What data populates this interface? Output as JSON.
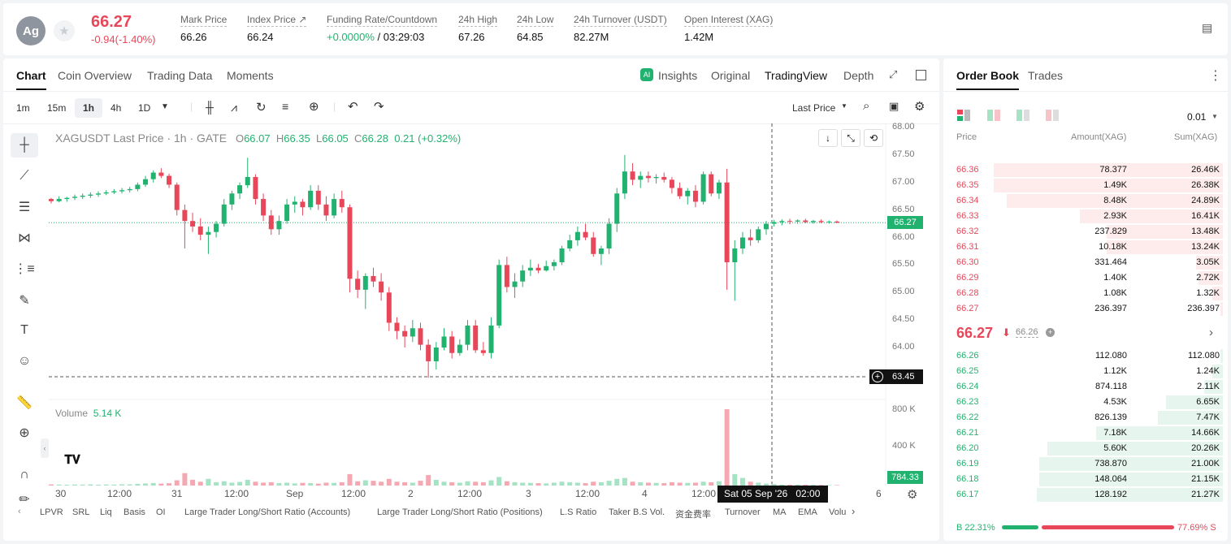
{
  "ticker": {
    "avatar": "Ag",
    "price": "66.27",
    "change": "-0.94(-1.40%)"
  },
  "stats": [
    {
      "label": "Mark Price",
      "value": "66.26"
    },
    {
      "label": "Index Price ↗",
      "value": "66.24"
    },
    {
      "label": "Funding Rate/Countdown",
      "value_green": "+0.0000%",
      "value": " / 03:29:03"
    },
    {
      "label": "24h High",
      "value": "67.26"
    },
    {
      "label": "24h Low",
      "value": "64.85"
    },
    {
      "label": "24h Turnover (USDT)",
      "value": "82.27M"
    },
    {
      "label": "Open Interest (XAG)",
      "value": "1.42M"
    }
  ],
  "chart_tabs": [
    "Chart",
    "Coin Overview",
    "Trading Data",
    "Moments"
  ],
  "view_tabs": {
    "insights": "Insights",
    "original": "Original",
    "tradingview": "TradingView",
    "depth": "Depth"
  },
  "intervals": [
    "1m",
    "15m",
    "1h",
    "4h",
    "1D"
  ],
  "price_type": "Last Price",
  "legend": {
    "title": "XAGUSDT Last Price · 1h · GATE",
    "o": "O",
    "ov": "66.07",
    "h": "H",
    "hv": "66.35",
    "l": "L",
    "lv": "66.05",
    "c": "C",
    "cv": "66.28",
    "chg": "0.21 (+0.32%)"
  },
  "y_ticks": [
    "68.00",
    "67.50",
    "67.00",
    "66.50",
    "66.00",
    "65.50",
    "65.00",
    "64.50",
    "64.00"
  ],
  "current_price_tag": "66.27",
  "crosshair_price_tag": "63.45",
  "volume": {
    "label": "Volume",
    "value": "5.14 K",
    "ticks": [
      "800 K",
      "400 K"
    ],
    "tag": "784.33"
  },
  "x_ticks": [
    "30",
    "12:00",
    "31",
    "12:00",
    "Sep",
    "12:00",
    "2",
    "12:00",
    "3",
    "12:00",
    "4",
    "12:00",
    "6"
  ],
  "crosshair_time": "Sat 05 Sep '26   02:00",
  "indicators": [
    "LPVR",
    "SRL",
    "Liq",
    "Basis",
    "OI",
    "Large Trader Long/Short Ratio (Accounts)",
    "Large Trader Long/Short Ratio (Positions)",
    "L.S Ratio",
    "Taker B.S Vol.",
    "资金费率",
    "Turnover",
    "MA",
    "EMA",
    "Volu"
  ],
  "orderbook": {
    "tabs": [
      "Order Book",
      "Trades"
    ],
    "precision": "0.01",
    "headers": [
      "Price",
      "Amount(XAG)",
      "Sum(XAG)"
    ],
    "asks": [
      {
        "p": "66.36",
        "a": "78.377",
        "s": "26.46K",
        "d": 0.85
      },
      {
        "p": "66.35",
        "a": "1.49K",
        "s": "26.38K",
        "d": 0.85
      },
      {
        "p": "66.34",
        "a": "8.48K",
        "s": "24.89K",
        "d": 0.8
      },
      {
        "p": "66.33",
        "a": "2.93K",
        "s": "16.41K",
        "d": 0.53
      },
      {
        "p": "66.32",
        "a": "237.829",
        "s": "13.48K",
        "d": 0.43
      },
      {
        "p": "66.31",
        "a": "10.18K",
        "s": "13.24K",
        "d": 0.43
      },
      {
        "p": "66.30",
        "a": "331.464",
        "s": "3.05K",
        "d": 0.1
      },
      {
        "p": "66.29",
        "a": "1.40K",
        "s": "2.72K",
        "d": 0.09
      },
      {
        "p": "66.28",
        "a": "1.08K",
        "s": "1.32K",
        "d": 0.04
      },
      {
        "p": "66.27",
        "a": "236.397",
        "s": "236.397",
        "d": 0.01
      }
    ],
    "mid_price": "66.27",
    "mid_mark": "66.26",
    "bids": [
      {
        "p": "66.26",
        "a": "112.080",
        "s": "112.080",
        "d": 0.01
      },
      {
        "p": "66.25",
        "a": "1.12K",
        "s": "1.24K",
        "d": 0.04
      },
      {
        "p": "66.24",
        "a": "874.118",
        "s": "2.11K",
        "d": 0.07
      },
      {
        "p": "66.23",
        "a": "4.53K",
        "s": "6.65K",
        "d": 0.21
      },
      {
        "p": "66.22",
        "a": "826.139",
        "s": "7.47K",
        "d": 0.24
      },
      {
        "p": "66.21",
        "a": "7.18K",
        "s": "14.66K",
        "d": 0.47
      },
      {
        "p": "66.20",
        "a": "5.60K",
        "s": "20.26K",
        "d": 0.65
      },
      {
        "p": "66.19",
        "a": "738.870",
        "s": "21.00K",
        "d": 0.68
      },
      {
        "p": "66.18",
        "a": "148.064",
        "s": "21.15K",
        "d": 0.68
      },
      {
        "p": "66.17",
        "a": "128.192",
        "s": "21.27K",
        "d": 0.69
      }
    ],
    "buy_ratio": "B 22.31%",
    "sell_ratio": "77.69% S",
    "buy_fraction": 0.2231
  },
  "colors": {
    "up": "#21b26f",
    "down": "#e8475a",
    "up_light": "#e6f6ee",
    "down_light": "#fdeceb"
  },
  "chart_data": {
    "type": "candlestick",
    "y_range": [
      63.45,
      68.0
    ],
    "candles": [
      [
        66.7,
        66.72,
        66.62,
        66.66
      ],
      [
        66.66,
        66.75,
        66.64,
        66.7
      ],
      [
        66.7,
        66.74,
        66.65,
        66.72
      ],
      [
        66.72,
        66.78,
        66.68,
        66.74
      ],
      [
        66.74,
        66.8,
        66.7,
        66.76
      ],
      [
        66.76,
        66.82,
        66.72,
        66.78
      ],
      [
        66.78,
        66.84,
        66.74,
        66.8
      ],
      [
        66.8,
        66.86,
        66.77,
        66.82
      ],
      [
        66.82,
        66.88,
        66.79,
        66.84
      ],
      [
        66.84,
        66.9,
        66.8,
        66.86
      ],
      [
        66.86,
        66.92,
        66.82,
        66.88
      ],
      [
        66.88,
        67.0,
        66.84,
        66.96
      ],
      [
        66.96,
        67.12,
        66.92,
        67.06
      ],
      [
        67.06,
        67.22,
        67.0,
        67.18
      ],
      [
        67.18,
        67.26,
        67.08,
        67.12
      ],
      [
        67.12,
        67.16,
        66.9,
        66.96
      ],
      [
        66.96,
        67.0,
        66.4,
        66.5
      ],
      [
        66.5,
        66.6,
        65.8,
        66.3
      ],
      [
        66.3,
        66.45,
        66.1,
        66.2
      ],
      [
        66.2,
        66.35,
        65.95,
        66.05
      ],
      [
        66.05,
        66.2,
        65.7,
        66.1
      ],
      [
        66.1,
        66.3,
        66.0,
        66.25
      ],
      [
        66.25,
        66.7,
        66.2,
        66.6
      ],
      [
        66.6,
        66.85,
        66.5,
        66.8
      ],
      [
        66.8,
        67.0,
        66.7,
        66.95
      ],
      [
        66.95,
        67.45,
        66.9,
        67.1
      ],
      [
        67.1,
        67.15,
        66.6,
        66.7
      ],
      [
        66.7,
        66.8,
        66.3,
        66.4
      ],
      [
        66.4,
        66.5,
        66.05,
        66.15
      ],
      [
        66.15,
        66.4,
        66.05,
        66.3
      ],
      [
        66.3,
        66.7,
        66.25,
        66.6
      ],
      [
        66.6,
        66.75,
        66.45,
        66.65
      ],
      [
        66.65,
        66.7,
        66.4,
        66.55
      ],
      [
        66.55,
        66.95,
        66.5,
        66.85
      ],
      [
        66.85,
        66.95,
        66.5,
        66.6
      ],
      [
        66.6,
        66.75,
        66.3,
        66.4
      ],
      [
        66.4,
        66.8,
        66.35,
        66.7
      ],
      [
        66.7,
        66.85,
        66.45,
        66.55
      ],
      [
        66.55,
        66.6,
        65.0,
        65.25
      ],
      [
        65.25,
        65.4,
        64.9,
        65.05
      ],
      [
        65.05,
        65.35,
        64.7,
        65.3
      ],
      [
        65.3,
        65.45,
        65.1,
        65.2
      ],
      [
        65.2,
        65.35,
        64.85,
        65.0
      ],
      [
        65.0,
        65.1,
        64.3,
        64.45
      ],
      [
        64.45,
        64.55,
        64.15,
        64.3
      ],
      [
        64.3,
        64.4,
        64.0,
        64.2
      ],
      [
        64.2,
        64.5,
        64.1,
        64.35
      ],
      [
        64.35,
        64.45,
        63.95,
        64.05
      ],
      [
        64.05,
        64.15,
        63.45,
        63.75
      ],
      [
        63.75,
        64.1,
        63.6,
        64.0
      ],
      [
        64.0,
        64.35,
        63.95,
        64.2
      ],
      [
        64.2,
        64.3,
        63.8,
        63.9
      ],
      [
        63.9,
        64.15,
        63.85,
        64.05
      ],
      [
        64.05,
        64.5,
        63.95,
        64.4
      ],
      [
        64.4,
        64.5,
        63.9,
        63.95
      ],
      [
        63.95,
        64.1,
        63.85,
        63.9
      ],
      [
        63.9,
        64.55,
        63.8,
        64.4
      ],
      [
        64.4,
        65.6,
        64.35,
        65.5
      ],
      [
        65.5,
        65.65,
        65.0,
        65.1
      ],
      [
        65.1,
        65.35,
        64.9,
        65.2
      ],
      [
        65.2,
        65.5,
        65.1,
        65.4
      ],
      [
        65.4,
        65.6,
        65.3,
        65.45
      ],
      [
        65.45,
        65.52,
        65.35,
        65.4
      ],
      [
        65.4,
        65.58,
        65.38,
        65.48
      ],
      [
        65.48,
        65.6,
        65.4,
        65.55
      ],
      [
        65.55,
        65.85,
        65.5,
        65.8
      ],
      [
        65.8,
        66.05,
        65.75,
        65.95
      ],
      [
        65.95,
        66.2,
        65.85,
        66.1
      ],
      [
        66.1,
        66.25,
        65.95,
        66.0
      ],
      [
        66.0,
        66.1,
        65.65,
        65.7
      ],
      [
        65.7,
        65.85,
        65.5,
        65.8
      ],
      [
        65.8,
        66.35,
        65.7,
        66.25
      ],
      [
        66.25,
        66.9,
        66.1,
        66.8
      ],
      [
        66.8,
        67.5,
        66.7,
        67.2
      ],
      [
        67.2,
        67.35,
        66.95,
        67.05
      ],
      [
        67.05,
        67.2,
        66.9,
        67.12
      ],
      [
        67.12,
        67.2,
        67.0,
        67.08
      ],
      [
        67.08,
        67.15,
        66.98,
        67.1
      ],
      [
        67.1,
        67.18,
        67.0,
        67.05
      ],
      [
        67.05,
        67.1,
        66.8,
        66.9
      ],
      [
        66.9,
        67.0,
        66.7,
        66.75
      ],
      [
        66.75,
        66.9,
        66.6,
        66.85
      ],
      [
        66.85,
        66.95,
        66.55,
        66.65
      ],
      [
        66.65,
        67.2,
        66.6,
        67.15
      ],
      [
        67.15,
        67.2,
        66.75,
        66.8
      ],
      [
        66.8,
        67.05,
        66.7,
        67.0
      ],
      [
        67.0,
        67.25,
        65.05,
        65.55
      ],
      [
        65.55,
        65.95,
        64.85,
        65.8
      ],
      [
        65.8,
        66.1,
        65.7,
        66.0
      ],
      [
        66.0,
        66.15,
        65.85,
        65.95
      ],
      [
        65.95,
        66.2,
        65.9,
        66.15
      ],
      [
        66.15,
        66.3,
        66.05,
        66.25
      ],
      [
        66.25,
        66.32,
        66.2,
        66.28
      ],
      [
        66.28,
        66.33,
        66.22,
        66.3
      ],
      [
        66.3,
        66.34,
        66.24,
        66.29
      ],
      [
        66.29,
        66.33,
        66.25,
        66.31
      ],
      [
        66.31,
        66.34,
        66.26,
        66.28
      ],
      [
        66.28,
        66.32,
        66.25,
        66.3
      ],
      [
        66.3,
        66.33,
        66.26,
        66.28
      ],
      [
        66.28,
        66.31,
        66.25,
        66.29
      ],
      [
        66.29,
        66.31,
        66.26,
        66.27
      ]
    ],
    "volumes": [
      12,
      10,
      9,
      11,
      10,
      12,
      9,
      11,
      10,
      13,
      12,
      18,
      22,
      26,
      20,
      24,
      55,
      130,
      60,
      40,
      70,
      35,
      45,
      30,
      38,
      60,
      40,
      30,
      35,
      25,
      30,
      22,
      28,
      25,
      20,
      30,
      28,
      35,
      120,
      45,
      55,
      50,
      40,
      70,
      40,
      35,
      30,
      50,
      110,
      60,
      40,
      35,
      30,
      45,
      40,
      35,
      55,
      90,
      45,
      35,
      30,
      28,
      25,
      22,
      30,
      40,
      35,
      30,
      25,
      40,
      35,
      50,
      70,
      80,
      40,
      35,
      30,
      28,
      25,
      35,
      30,
      28,
      30,
      40,
      35,
      45,
      800,
      120,
      80,
      40,
      30,
      20,
      15,
      10,
      8,
      10,
      8,
      7,
      6,
      6,
      5
    ],
    "volume_range": [
      0,
      800
    ]
  }
}
